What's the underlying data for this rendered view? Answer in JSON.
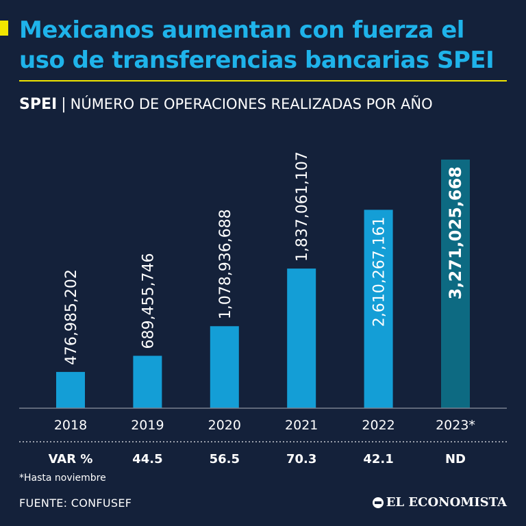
{
  "header": {
    "title": "Mexicanos aumentan con fuerza el uso de transferencias bancarias SPEI",
    "subtitle_bold": "SPEI",
    "subtitle_sep": "|",
    "subtitle_desc": "NÚMERO DE OPERACIONES REALIZADAS POR AÑO"
  },
  "colors": {
    "background": "#14213a",
    "bar": "#149ed6",
    "bar_highlight": "#0d6a82",
    "title": "#1fb3ea",
    "accent": "#f2e600",
    "axis": "#7a8090"
  },
  "chart_data": {
    "type": "bar",
    "title": "NÚMERO DE OPERACIONES REALIZADAS POR AÑO",
    "categories": [
      "2018",
      "2019",
      "2020",
      "2021",
      "2022",
      "2023*"
    ],
    "values": [
      476985202,
      689455746,
      1078936688,
      1837061107,
      2610267161,
      3271025668
    ],
    "value_labels": [
      "476,985,202",
      "689,455,746",
      "1,078,936,688",
      "1,837,061,107",
      "2,610,267,161",
      "3,271,025,668"
    ],
    "highlight_index": 5,
    "xlabel": "",
    "ylabel": "",
    "ylim": [
      0,
      3271025668
    ],
    "grid": false,
    "variation": {
      "label": "VAR %",
      "values": [
        "44.5",
        "56.5",
        "70.3",
        "42.1",
        "ND"
      ]
    }
  },
  "footnote": "*Hasta noviembre",
  "source": "FUENTE: CONFUSEF",
  "brand": "EL ECONOMISTA",
  "brand_icon": "el-economista-logo-icon"
}
